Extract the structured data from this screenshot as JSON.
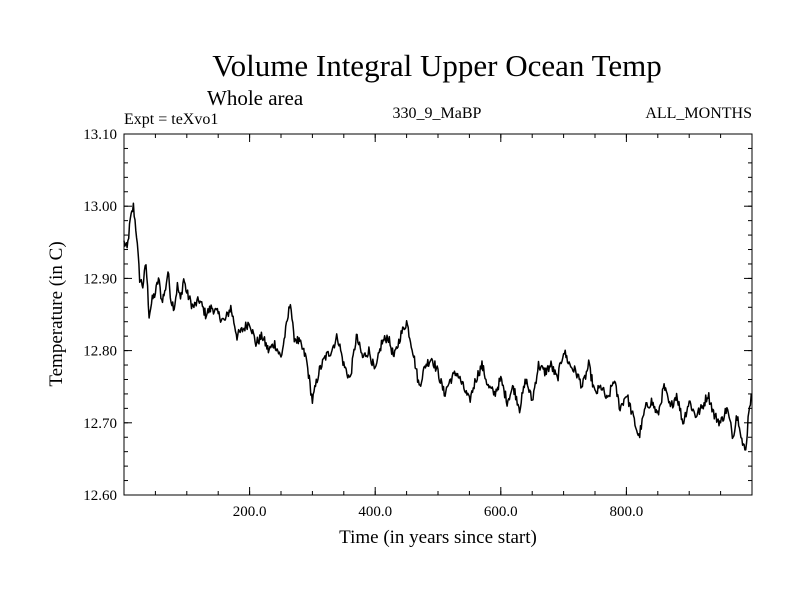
{
  "chart_data": {
    "type": "line",
    "title": "Volume Integral Upper Ocean Temp",
    "subtitle": "Whole area",
    "expt_label": "Expt = teXvo1",
    "run_label": "330_9_MaBP",
    "months_label": "ALL_MONTHS",
    "xlabel": "Time (in years since start)",
    "ylabel": "Temperature (in C)",
    "xlim": [
      0,
      1000
    ],
    "ylim": [
      12.6,
      13.1
    ],
    "xticks": [
      200,
      400,
      600,
      800
    ],
    "xtick_labels": [
      "200.0",
      "400.0",
      "600.0",
      "800.0"
    ],
    "yticks": [
      12.6,
      12.7,
      12.8,
      12.9,
      13.0,
      13.1
    ],
    "ytick_labels": [
      "12.60",
      "12.70",
      "12.80",
      "12.90",
      "13.00",
      "13.10"
    ],
    "grid": false,
    "series": [
      {
        "name": "teXvo1",
        "color": "#000000",
        "x": [
          0,
          5,
          10,
          15,
          20,
          25,
          30,
          35,
          40,
          45,
          50,
          55,
          60,
          65,
          70,
          75,
          80,
          85,
          90,
          95,
          100,
          110,
          120,
          130,
          140,
          150,
          160,
          170,
          180,
          190,
          200,
          210,
          220,
          230,
          240,
          250,
          260,
          265,
          270,
          280,
          290,
          300,
          305,
          310,
          320,
          330,
          340,
          350,
          360,
          370,
          380,
          390,
          400,
          410,
          420,
          430,
          440,
          450,
          460,
          470,
          480,
          490,
          500,
          510,
          520,
          530,
          540,
          550,
          560,
          570,
          580,
          590,
          600,
          610,
          620,
          630,
          640,
          650,
          660,
          670,
          680,
          690,
          700,
          710,
          720,
          730,
          740,
          750,
          760,
          770,
          780,
          790,
          800,
          810,
          820,
          830,
          840,
          850,
          860,
          870,
          880,
          890,
          900,
          910,
          920,
          930,
          940,
          950,
          960,
          970,
          975,
          980,
          985,
          990,
          995,
          1000
        ],
        "y": [
          12.95,
          12.94,
          12.98,
          13.0,
          12.96,
          12.9,
          12.89,
          12.92,
          12.85,
          12.87,
          12.88,
          12.9,
          12.87,
          12.88,
          12.91,
          12.87,
          12.86,
          12.89,
          12.87,
          12.9,
          12.88,
          12.86,
          12.87,
          12.85,
          12.86,
          12.85,
          12.84,
          12.86,
          12.82,
          12.83,
          12.84,
          12.81,
          12.82,
          12.8,
          12.81,
          12.79,
          12.84,
          12.87,
          12.82,
          12.81,
          12.79,
          12.73,
          12.75,
          12.77,
          12.79,
          12.8,
          12.82,
          12.78,
          12.76,
          12.82,
          12.79,
          12.8,
          12.77,
          12.81,
          12.82,
          12.79,
          12.82,
          12.84,
          12.8,
          12.75,
          12.78,
          12.79,
          12.77,
          12.74,
          12.76,
          12.77,
          12.75,
          12.73,
          12.76,
          12.78,
          12.75,
          12.74,
          12.76,
          12.73,
          12.75,
          12.72,
          12.76,
          12.73,
          12.78,
          12.77,
          12.78,
          12.76,
          12.8,
          12.78,
          12.77,
          12.75,
          12.78,
          12.74,
          12.75,
          12.73,
          12.76,
          12.72,
          12.74,
          12.71,
          12.68,
          12.72,
          12.73,
          12.71,
          12.75,
          12.72,
          12.74,
          12.7,
          12.73,
          12.71,
          12.72,
          12.74,
          12.71,
          12.7,
          12.72,
          12.68,
          12.71,
          12.7,
          12.67,
          12.66,
          12.72,
          12.74
        ]
      }
    ]
  }
}
